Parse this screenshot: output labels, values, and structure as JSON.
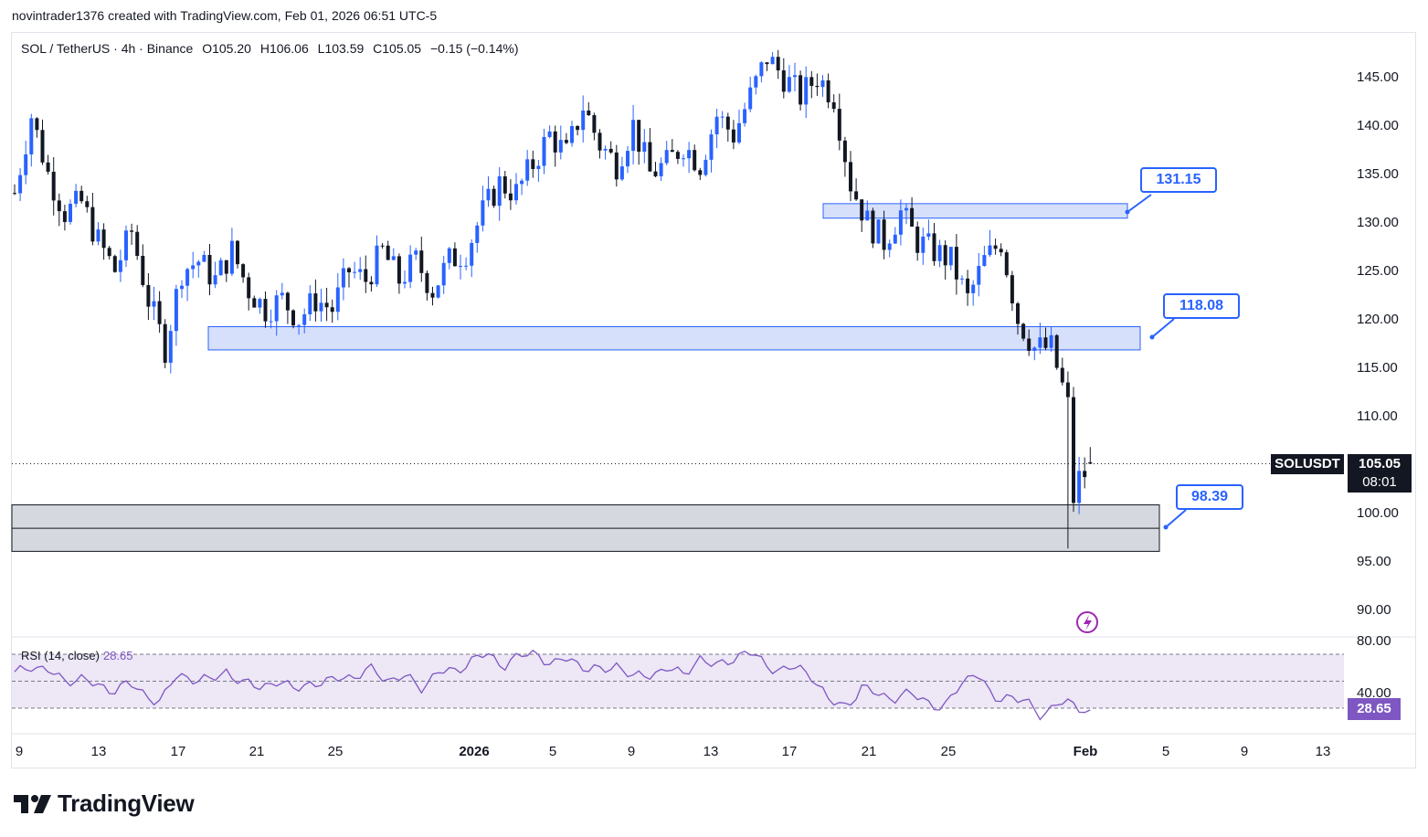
{
  "header": {
    "caption": "novintrader1376 created with TradingView.com, Feb 01, 2026 06:51 UTC-5"
  },
  "symbol_line": {
    "pair": "SOL / TetherUS · 4h · Binance",
    "open": "O105.20",
    "high": "H106.06",
    "low": "L103.59",
    "close": "C105.05",
    "change": "−0.15 (−0.14%)"
  },
  "ticker_label": "SOLUSDT",
  "last_price": "105.05",
  "countdown": "08:01",
  "rsi": {
    "label": "RSI (14, close)",
    "value": "28.65",
    "axis_ticks": [
      "80.00",
      "40.00"
    ]
  },
  "callouts": [
    "131.15",
    "118.08",
    "98.39"
  ],
  "footer": {
    "brand": "TradingView"
  },
  "colors": {
    "up": "#2962ff",
    "down": "#131722",
    "zone_fill": "#d1ddfa",
    "zone_border": "#2962ff",
    "gray_zone": "#d1d4dc",
    "rsi_line": "#7e57c2",
    "rsi_band": "#ede7f6"
  },
  "chart_data": {
    "type": "candlestick",
    "timeframe": "4h",
    "x_ticks": [
      "9",
      "13",
      "17",
      "21",
      "25",
      "2026",
      "5",
      "9",
      "13",
      "17",
      "21",
      "25",
      "Feb",
      "5",
      "9",
      "13"
    ],
    "y_ticks": [
      145,
      140,
      135,
      130,
      125,
      120,
      115,
      110,
      100,
      95,
      90
    ],
    "ylim": [
      86,
      149
    ],
    "close_path": [
      [
        0,
        133
      ],
      [
        3,
        141
      ],
      [
        6,
        135
      ],
      [
        9,
        131
      ],
      [
        12,
        132
      ],
      [
        15,
        128
      ],
      [
        18,
        125
      ],
      [
        21,
        129
      ],
      [
        24,
        122
      ],
      [
        27,
        117
      ],
      [
        30,
        125
      ],
      [
        33,
        126
      ],
      [
        36,
        124
      ],
      [
        39,
        127
      ],
      [
        42,
        123
      ],
      [
        45,
        121
      ],
      [
        48,
        122
      ],
      [
        51,
        120
      ],
      [
        54,
        122
      ],
      [
        57,
        121
      ],
      [
        60,
        125
      ],
      [
        63,
        124
      ],
      [
        66,
        127
      ],
      [
        69,
        124
      ],
      [
        72,
        126
      ],
      [
        75,
        123
      ],
      [
        78,
        126
      ],
      [
        81,
        127
      ],
      [
        84,
        131
      ],
      [
        87,
        134
      ],
      [
        90,
        133
      ],
      [
        93,
        136
      ],
      [
        96,
        139
      ],
      [
        99,
        137
      ],
      [
        102,
        142
      ],
      [
        105,
        138
      ],
      [
        108,
        136
      ],
      [
        111,
        140
      ],
      [
        114,
        135
      ],
      [
        117,
        136
      ],
      [
        120,
        138
      ],
      [
        123,
        136
      ],
      [
        126,
        141
      ],
      [
        129,
        139
      ],
      [
        132,
        143
      ],
      [
        135,
        147
      ],
      [
        138,
        145
      ],
      [
        141,
        143
      ],
      [
        144,
        145
      ],
      [
        147,
        143
      ],
      [
        150,
        134
      ],
      [
        153,
        130
      ],
      [
        156,
        128
      ],
      [
        159,
        131
      ],
      [
        162,
        128
      ],
      [
        165,
        127
      ],
      [
        168,
        126
      ],
      [
        171,
        122
      ],
      [
        174,
        126
      ],
      [
        177,
        128
      ],
      [
        180,
        120
      ],
      [
        183,
        117
      ],
      [
        186,
        117
      ],
      [
        189,
        111
      ],
      [
        190,
        103
      ],
      [
        192,
        104
      ],
      [
        193,
        105.05
      ]
    ],
    "rsi_ylim": [
      20,
      90
    ],
    "rsi_bands": [
      70,
      50,
      30
    ],
    "rsi_values": [
      55,
      62,
      58,
      50,
      53,
      46,
      44,
      48,
      40,
      35,
      55,
      52,
      50,
      58,
      48,
      46,
      50,
      44,
      49,
      47,
      55,
      52,
      60,
      50,
      53,
      46,
      56,
      58,
      65,
      70,
      62,
      68,
      72,
      61,
      68,
      60,
      57,
      63,
      52,
      55,
      60,
      54,
      68,
      60,
      67,
      72,
      63,
      58,
      60,
      54,
      34,
      32,
      45,
      40,
      38,
      40,
      36,
      28,
      48,
      58,
      36,
      40,
      34,
      25,
      34,
      32,
      28.65
    ],
    "zones": [
      {
        "label": "131.15",
        "low": 130.4,
        "high": 131.9
      },
      {
        "label": "118.08",
        "low": 116.8,
        "high": 119.2
      },
      {
        "label": "98.39",
        "low": 96.0,
        "high": 100.8
      }
    ],
    "last_price": 105.05
  }
}
